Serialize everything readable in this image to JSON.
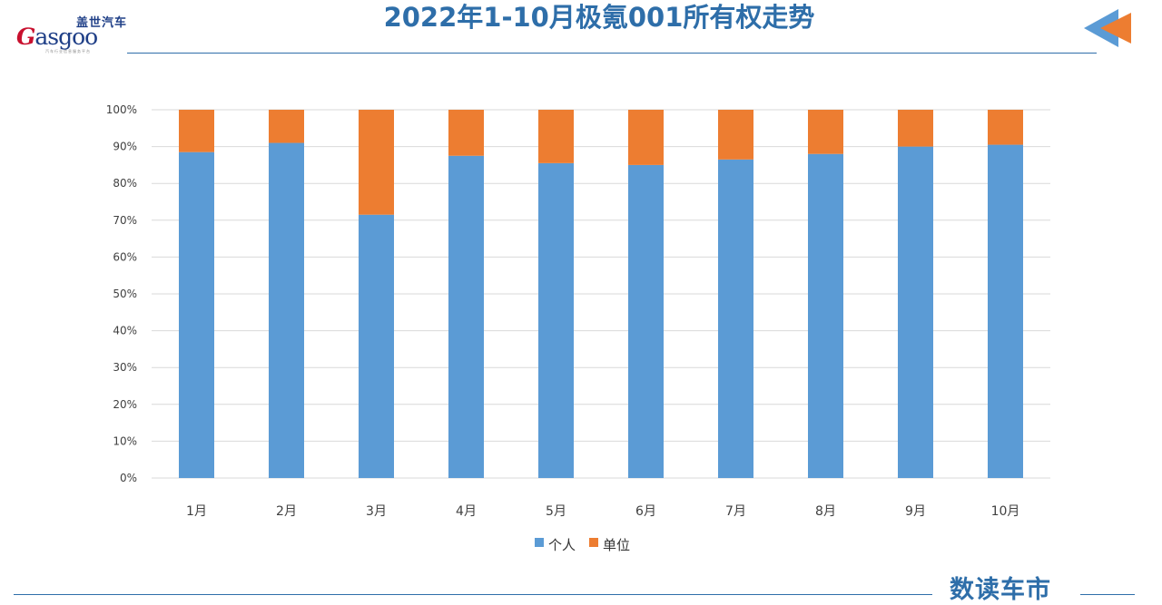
{
  "header": {
    "logo_cn": "盖世汽车",
    "logo_en_initial": "G",
    "logo_en_rest": "asgoo",
    "logo_sub": "汽车行业信息服务平台",
    "title": "2022年1-10月极氪001所有权走势"
  },
  "footer": {
    "brand": "数读车市"
  },
  "colors": {
    "title": "#2e6ea9",
    "series_personal": "#5b9bd5",
    "series_unit": "#ed7d31",
    "grid": "#d9d9d9",
    "axis_text": "#404040"
  },
  "icons": {
    "nav": "back-arrow-icon"
  },
  "chart_data": {
    "type": "bar",
    "stacked": true,
    "percent": true,
    "title": "",
    "xlabel": "",
    "ylabel": "",
    "categories": [
      "1月",
      "2月",
      "3月",
      "4月",
      "5月",
      "6月",
      "7月",
      "8月",
      "9月",
      "10月"
    ],
    "series": [
      {
        "name": "个人",
        "color": "#5b9bd5",
        "values": [
          88.5,
          91,
          71.5,
          87.5,
          85.5,
          85,
          86.5,
          88,
          90,
          90.5
        ]
      },
      {
        "name": "单位",
        "color": "#ed7d31",
        "values": [
          11.5,
          9,
          28.5,
          12.5,
          14.5,
          15,
          13.5,
          12,
          10,
          9.5
        ]
      }
    ],
    "yticks": [
      "0%",
      "10%",
      "20%",
      "30%",
      "40%",
      "50%",
      "60%",
      "70%",
      "80%",
      "90%",
      "100%"
    ],
    "ylim": [
      0,
      100
    ],
    "grid": true,
    "legend_position": "bottom"
  }
}
